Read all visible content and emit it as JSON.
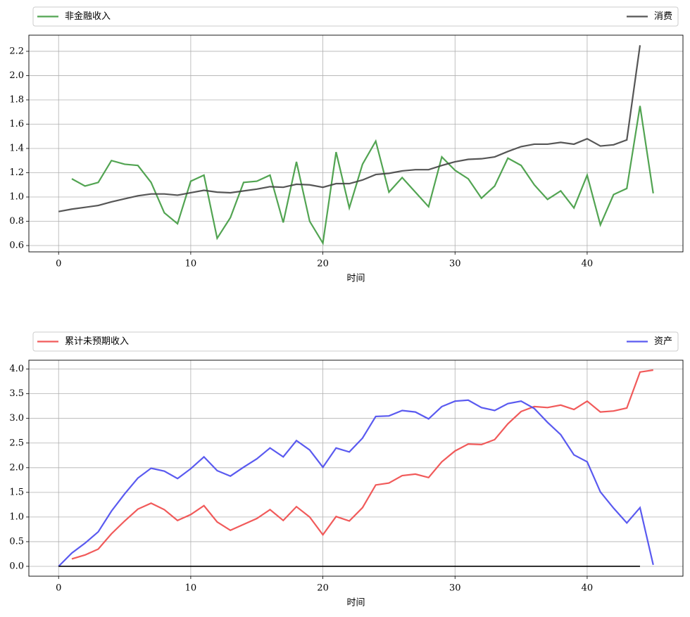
{
  "chart_data": [
    {
      "type": "line",
      "xlabel": "时间",
      "x": [
        0,
        1,
        2,
        3,
        4,
        5,
        6,
        7,
        8,
        9,
        10,
        11,
        12,
        13,
        14,
        15,
        16,
        17,
        18,
        19,
        20,
        21,
        22,
        23,
        24,
        25,
        26,
        27,
        28,
        29,
        30,
        31,
        32,
        33,
        34,
        35,
        36,
        37,
        38,
        39,
        40,
        41,
        42,
        43,
        44,
        45
      ],
      "series": [
        {
          "name": "非金融收入",
          "color": "#3f9a3f",
          "values": [
            null,
            1.15,
            1.09,
            1.12,
            1.3,
            1.27,
            1.26,
            1.12,
            0.87,
            0.78,
            1.13,
            1.18,
            0.66,
            0.83,
            1.12,
            1.13,
            1.18,
            0.79,
            1.29,
            0.8,
            0.62,
            1.37,
            0.91,
            1.27,
            1.46,
            1.04,
            1.16,
            1.04,
            0.92,
            1.33,
            1.22,
            1.15,
            0.99,
            1.09,
            1.32,
            1.26,
            1.1,
            0.98,
            1.05,
            0.91,
            1.18,
            0.77,
            1.02,
            1.07,
            1.75,
            1.03
          ]
        },
        {
          "name": "消费",
          "color": "#444444",
          "values": [
            0.88,
            0.9,
            0.915,
            0.93,
            0.96,
            0.985,
            1.01,
            1.025,
            1.025,
            1.015,
            1.035,
            1.055,
            1.04,
            1.035,
            1.05,
            1.065,
            1.085,
            1.08,
            1.105,
            1.1,
            1.08,
            1.11,
            1.11,
            1.14,
            1.185,
            1.195,
            1.215,
            1.225,
            1.225,
            1.26,
            1.29,
            1.31,
            1.315,
            1.33,
            1.375,
            1.415,
            1.435,
            1.435,
            1.45,
            1.435,
            1.48,
            1.42,
            1.43,
            1.47,
            2.25,
            null
          ]
        }
      ],
      "xlim": [
        -2.25,
        47.25
      ],
      "xticks": [
        0,
        10,
        20,
        30,
        40
      ],
      "ylim": [
        0.548,
        2.333
      ],
      "yticks": [
        0.6,
        0.8,
        {
          "value": 1,
          "label": "1.0"
        },
        1.2,
        1.4,
        1.6,
        1.8,
        {
          "value": 2,
          "label": "2.0"
        },
        2.2
      ],
      "grid": true,
      "legend": "above"
    },
    {
      "type": "line",
      "xlabel": "时间",
      "x": [
        0,
        1,
        2,
        3,
        4,
        5,
        6,
        7,
        8,
        9,
        10,
        11,
        12,
        13,
        14,
        15,
        16,
        17,
        18,
        19,
        20,
        21,
        22,
        23,
        24,
        25,
        26,
        27,
        28,
        29,
        30,
        31,
        32,
        33,
        34,
        35,
        36,
        37,
        38,
        39,
        40,
        41,
        42,
        43,
        44,
        45
      ],
      "series": [
        {
          "name": "累计未预期收入",
          "color": "#f04848",
          "values": [
            null,
            0.15,
            0.23,
            0.35,
            0.66,
            0.92,
            1.16,
            1.28,
            1.15,
            0.93,
            1.05,
            1.23,
            0.9,
            0.73,
            0.85,
            0.97,
            1.15,
            0.93,
            1.21,
            1.0,
            0.64,
            1.01,
            0.92,
            1.19,
            1.65,
            1.69,
            1.84,
            1.87,
            1.8,
            2.12,
            2.34,
            2.48,
            2.47,
            2.57,
            2.89,
            3.14,
            3.24,
            3.22,
            3.27,
            3.18,
            3.35,
            3.13,
            3.15,
            3.21,
            3.94,
            3.98
          ]
        },
        {
          "name": "资产",
          "color": "#4848ee",
          "values": [
            0.0,
            0.27,
            0.47,
            0.7,
            1.12,
            1.47,
            1.79,
            1.99,
            1.93,
            1.78,
            1.98,
            2.22,
            1.94,
            1.83,
            2.01,
            2.18,
            2.4,
            2.22,
            2.55,
            2.36,
            2.01,
            2.4,
            2.32,
            2.6,
            3.04,
            3.05,
            3.16,
            3.13,
            2.99,
            3.24,
            3.35,
            3.37,
            3.22,
            3.16,
            3.3,
            3.35,
            3.2,
            2.92,
            2.67,
            2.26,
            2.12,
            1.51,
            1.18,
            0.88,
            1.19,
            0.03
          ]
        },
        {
          "color": "#000000",
          "values": [
            0,
            0,
            0,
            0,
            0,
            0,
            0,
            0,
            0,
            0,
            0,
            0,
            0,
            0,
            0,
            0,
            0,
            0,
            0,
            0,
            0,
            0,
            0,
            0,
            0,
            0,
            0,
            0,
            0,
            0,
            0,
            0,
            0,
            0,
            0,
            0,
            0,
            0,
            0,
            0,
            0,
            0,
            0,
            0,
            0,
            null
          ]
        }
      ],
      "xlim": [
        -2.25,
        47.25
      ],
      "xticks": [
        0,
        10,
        20,
        30,
        40
      ],
      "ylim": [
        -0.2,
        4.18
      ],
      "yticks": [
        {
          "value": 0,
          "label": "0.0"
        },
        0.5,
        {
          "value": 1,
          "label": "1.0"
        },
        1.5,
        {
          "value": 2,
          "label": "2.0"
        },
        2.5,
        {
          "value": 3,
          "label": "3.0"
        },
        3.5,
        {
          "value": 4,
          "label": "4.0"
        }
      ],
      "grid": true,
      "legend": "above"
    }
  ]
}
